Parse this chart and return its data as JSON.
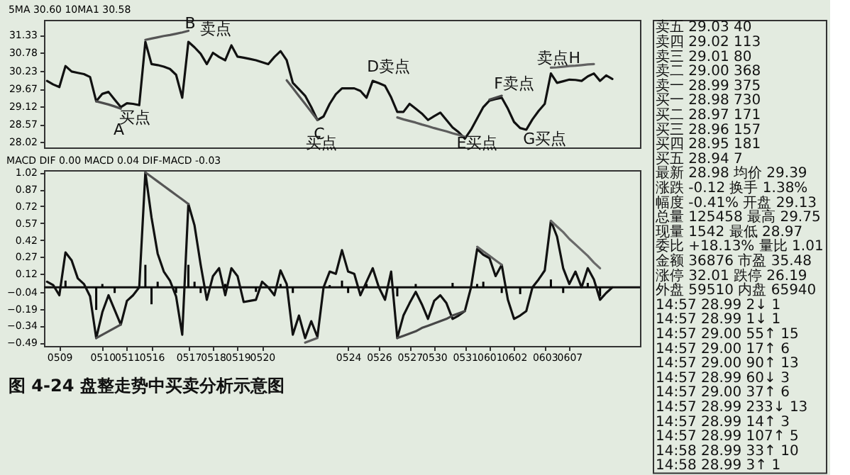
{
  "chart_data": [
    {
      "type": "line",
      "title": "5MA 30.60  10MA1 30.58",
      "categories": [
        null,
        null,
        "0509",
        null,
        null,
        null,
        null,
        null,
        null,
        "0510",
        null,
        null,
        null,
        "0511",
        null,
        null,
        null,
        "0516",
        null,
        null,
        null,
        null,
        null,
        "0517",
        null,
        null,
        null,
        "0518",
        null,
        null,
        null,
        "0519",
        null,
        null,
        null,
        "0520",
        null,
        null,
        null,
        null,
        null,
        null,
        null,
        null,
        null,
        null,
        null,
        null,
        null,
        "0524",
        null,
        null,
        null,
        null,
        "0526",
        null,
        null,
        null,
        null,
        "0527",
        null,
        null,
        null,
        "0530",
        null,
        null,
        null,
        null,
        "0531",
        null,
        null,
        null,
        "0601",
        null,
        null,
        null,
        "0602",
        null,
        null,
        null,
        null,
        "0603",
        null,
        null,
        null,
        "0607",
        null,
        null,
        null,
        null,
        null,
        null,
        null,
        null,
        null,
        null,
        null
      ],
      "ylim": [
        27.85,
        31.8
      ],
      "yticks": [
        31.33,
        30.78,
        30.23,
        29.67,
        29.12,
        28.57,
        28.02
      ],
      "tick_labels": "y",
      "grid": false,
      "series": [
        {
          "color": "#111111",
          "values": [
            29.91,
            29.8,
            29.72,
            30.37,
            30.2,
            30.16,
            30.12,
            30.03,
            29.28,
            29.51,
            29.57,
            29.33,
            29.1,
            29.22,
            29.2,
            29.16,
            31.12,
            30.43,
            30.4,
            30.35,
            30.28,
            30.1,
            29.39,
            31.12,
            30.95,
            30.75,
            30.43,
            30.78,
            30.65,
            30.55,
            31.01,
            30.66,
            30.63,
            30.59,
            30.55,
            30.49,
            30.43,
            30.65,
            30.83,
            30.55,
            29.85,
            29.65,
            29.45,
            29.1,
            28.7,
            28.81,
            29.2,
            29.5,
            29.68,
            29.68,
            29.68,
            29.6,
            29.39,
            29.91,
            29.84,
            29.76,
            29.4,
            28.95,
            28.95,
            29.2,
            29.05,
            28.9,
            28.7,
            28.82,
            28.93,
            28.7,
            28.47,
            28.32,
            28.12,
            28.4,
            28.75,
            29.1,
            29.3,
            29.35,
            29.39,
            29.05,
            28.64,
            28.45,
            28.4,
            28.72,
            28.98,
            29.2,
            30.14,
            29.85,
            29.9,
            29.95,
            29.94,
            29.91,
            30.05,
            30.14,
            29.91,
            30.08,
            29.97,
            null,
            null,
            null,
            null
          ]
        },
        {
          "color": "#4d4d4d",
          "values": [
            null,
            null,
            null,
            null,
            null,
            null,
            null,
            null,
            29.28,
            29.23,
            29.18,
            29.12,
            29.05,
            null,
            null,
            null,
            null,
            null,
            null,
            null,
            null,
            null,
            null,
            null,
            null,
            null,
            null,
            null,
            null,
            null,
            null,
            null,
            null,
            null,
            null,
            null,
            null,
            null,
            null,
            null,
            null,
            null,
            null,
            null,
            null,
            null,
            null,
            null,
            null,
            null,
            null,
            null,
            null,
            null,
            null,
            null,
            null,
            null,
            null,
            null,
            null,
            null,
            null,
            null,
            null,
            null,
            null,
            null,
            null,
            null,
            null,
            null,
            null,
            null,
            null,
            null,
            null,
            null,
            null,
            null,
            null,
            null,
            null,
            null,
            null,
            null,
            null,
            null,
            null,
            null,
            null,
            null,
            null,
            null,
            null,
            null,
            null
          ]
        },
        {
          "color": "#555555",
          "values": [
            null,
            null,
            null,
            null,
            null,
            null,
            null,
            null,
            null,
            null,
            null,
            null,
            null,
            null,
            null,
            null,
            31.18,
            31.22,
            31.26,
            31.3,
            31.33,
            31.37,
            31.41,
            31.46,
            null,
            null,
            null,
            null,
            null,
            null,
            null,
            null,
            null,
            null,
            null,
            null,
            null,
            null,
            null,
            null,
            null,
            null,
            null,
            null,
            null,
            null,
            null,
            null,
            null,
            null,
            null,
            null,
            null,
            null,
            null,
            null,
            null,
            null,
            null,
            null,
            null,
            null,
            null,
            null,
            null,
            null,
            null,
            null,
            null,
            null,
            null,
            null,
            null,
            null,
            null,
            null,
            null,
            null,
            null,
            null,
            null,
            null,
            null,
            null,
            null,
            null,
            null,
            null,
            null,
            null,
            null,
            null,
            null,
            null,
            null,
            null,
            null
          ]
        },
        {
          "color": "#555555",
          "values": [
            null,
            null,
            null,
            null,
            null,
            null,
            null,
            null,
            null,
            null,
            null,
            null,
            null,
            null,
            null,
            null,
            null,
            null,
            null,
            null,
            null,
            null,
            null,
            null,
            null,
            null,
            null,
            null,
            null,
            null,
            null,
            null,
            null,
            null,
            null,
            null,
            null,
            null,
            null,
            29.93,
            29.69,
            29.44,
            29.2,
            28.95,
            28.7,
            null,
            null,
            null,
            null,
            null,
            null,
            null,
            null,
            null,
            null,
            null,
            null,
            null,
            null,
            null,
            null,
            null,
            null,
            null,
            null,
            null,
            null,
            null,
            null,
            null,
            null,
            null,
            null,
            null,
            null,
            null,
            null,
            null,
            null,
            null,
            null,
            null,
            null,
            null,
            null,
            null,
            null,
            null,
            null,
            null,
            null,
            null,
            null,
            null,
            null,
            null,
            null
          ]
        },
        {
          "color": "#5c5c5c",
          "values": [
            null,
            null,
            null,
            null,
            null,
            null,
            null,
            null,
            null,
            null,
            null,
            null,
            null,
            null,
            null,
            null,
            null,
            null,
            null,
            null,
            null,
            null,
            null,
            null,
            null,
            null,
            null,
            null,
            null,
            null,
            null,
            null,
            null,
            null,
            null,
            null,
            null,
            null,
            null,
            null,
            null,
            null,
            null,
            null,
            null,
            null,
            null,
            null,
            null,
            null,
            null,
            null,
            null,
            null,
            null,
            null,
            null,
            28.78,
            28.72,
            28.67,
            28.62,
            28.56,
            28.51,
            28.45,
            28.4,
            28.35,
            28.29,
            28.24,
            28.18,
            null,
            null,
            null,
            null,
            null,
            null,
            null,
            null,
            null,
            null,
            null,
            null,
            null,
            null,
            null,
            null,
            null,
            null,
            null,
            null,
            null,
            null,
            null,
            null,
            null,
            null,
            null,
            null
          ]
        },
        {
          "color": "#474747",
          "values": [
            null,
            null,
            null,
            null,
            null,
            null,
            null,
            null,
            null,
            null,
            null,
            null,
            null,
            null,
            null,
            null,
            null,
            null,
            null,
            null,
            null,
            null,
            null,
            null,
            null,
            null,
            null,
            null,
            null,
            null,
            null,
            null,
            null,
            null,
            null,
            null,
            null,
            null,
            null,
            null,
            null,
            null,
            null,
            null,
            null,
            null,
            null,
            null,
            null,
            null,
            null,
            null,
            null,
            null,
            null,
            null,
            null,
            null,
            null,
            null,
            null,
            null,
            null,
            null,
            null,
            null,
            null,
            null,
            null,
            null,
            null,
            null,
            29.33,
            29.39,
            29.45,
            null,
            null,
            null,
            null,
            null,
            null,
            null,
            null,
            null,
            null,
            null,
            null,
            null,
            null,
            null,
            null,
            null,
            null,
            null,
            null,
            null,
            null
          ]
        },
        {
          "color": "#626262",
          "values": [
            null,
            null,
            null,
            null,
            null,
            null,
            null,
            null,
            null,
            null,
            null,
            null,
            null,
            null,
            null,
            null,
            null,
            null,
            null,
            null,
            null,
            null,
            null,
            null,
            null,
            null,
            null,
            null,
            null,
            null,
            null,
            null,
            null,
            null,
            null,
            null,
            null,
            null,
            null,
            null,
            null,
            null,
            null,
            null,
            null,
            null,
            null,
            null,
            null,
            null,
            null,
            null,
            null,
            null,
            null,
            null,
            null,
            null,
            null,
            null,
            null,
            null,
            null,
            null,
            null,
            null,
            null,
            null,
            null,
            null,
            null,
            null,
            null,
            null,
            null,
            null,
            null,
            null,
            null,
            null,
            null,
            null,
            30.32,
            30.33,
            30.35,
            30.37,
            30.38,
            30.4,
            30.42,
            30.43,
            null,
            null,
            null,
            null,
            null,
            null,
            null
          ]
        }
      ],
      "annotations": [
        "B",
        "卖点",
        "买点",
        "A",
        "C",
        "买点",
        "D卖点",
        "F卖点",
        "E买点",
        "G买点",
        "卖点H"
      ]
    },
    {
      "type": "line",
      "title": "MACD  DIF 0.00  MACD 0.04  DIF-MACD -0.03",
      "categories": [
        null,
        null,
        "0509",
        null,
        null,
        null,
        null,
        null,
        null,
        "0510",
        null,
        null,
        null,
        "0511",
        null,
        null,
        null,
        "0516",
        null,
        null,
        null,
        null,
        null,
        "0517",
        null,
        null,
        null,
        "0518",
        null,
        null,
        null,
        "0519",
        null,
        null,
        null,
        "0520",
        null,
        null,
        null,
        null,
        null,
        null,
        null,
        null,
        null,
        null,
        null,
        null,
        null,
        "0524",
        null,
        null,
        null,
        null,
        "0526",
        null,
        null,
        null,
        null,
        "0527",
        null,
        null,
        null,
        "0530",
        null,
        null,
        null,
        null,
        "0531",
        null,
        null,
        null,
        "0601",
        null,
        null,
        null,
        "0602",
        null,
        null,
        null,
        null,
        "0603",
        null,
        null,
        null,
        "0607",
        null,
        null,
        null,
        null,
        null,
        null,
        null,
        null,
        null,
        null,
        null
      ],
      "ylim": [
        -0.52,
        1.04
      ],
      "yticks": [
        1.02,
        0.87,
        0.72,
        0.57,
        0.42,
        0.27,
        0.12,
        -0.04,
        -0.19,
        -0.34,
        -0.49
      ],
      "grid": false,
      "ref_lines": [
        {
          "axis": "y",
          "value": 0,
          "color": "#111111"
        }
      ],
      "series": [
        {
          "type": "bar",
          "color": "#000000",
          "values": [
            null,
            null,
            null,
            0.06,
            null,
            null,
            null,
            null,
            -0.2,
            0.03,
            null,
            -0.05,
            null,
            null,
            null,
            null,
            0.2,
            -0.15,
            0.05,
            null,
            null,
            -0.05,
            null,
            0.2,
            0.05,
            -0.05,
            null,
            null,
            null,
            0.03,
            null,
            null,
            null,
            null,
            -0.04,
            null,
            null,
            null,
            0.03,
            null,
            -0.05,
            null,
            null,
            null,
            null,
            null,
            0.02,
            null,
            0.06,
            -0.05,
            null,
            null,
            0.03,
            null,
            null,
            null,
            null,
            -0.08,
            null,
            null,
            0.03,
            null,
            null,
            null,
            null,
            null,
            0.04,
            null,
            null,
            null,
            0.03,
            0.05,
            null,
            null,
            -0.05,
            null,
            null,
            -0.06,
            null,
            null,
            null,
            null,
            0.07,
            null,
            -0.05,
            null,
            null,
            null,
            0.04,
            null,
            -0.08,
            null,
            null,
            null,
            null,
            null,
            null
          ]
        },
        {
          "color": "#111111",
          "values": [
            0.05,
            0.02,
            -0.07,
            0.31,
            0.24,
            0.08,
            0.03,
            -0.08,
            -0.45,
            -0.22,
            -0.07,
            -0.2,
            -0.33,
            -0.12,
            -0.07,
            0.0,
            1.02,
            0.62,
            0.3,
            0.14,
            0.06,
            -0.08,
            -0.42,
            0.74,
            0.55,
            0.2,
            -0.11,
            0.1,
            0.17,
            -0.07,
            0.17,
            0.1,
            -0.13,
            -0.12,
            -0.11,
            0.05,
            0.0,
            -0.07,
            0.15,
            0.03,
            -0.42,
            -0.25,
            -0.45,
            -0.3,
            -0.44,
            0.0,
            0.14,
            0.12,
            0.33,
            0.14,
            0.12,
            -0.07,
            0.05,
            0.17,
            0.0,
            -0.11,
            0.14,
            -0.45,
            -0.25,
            -0.14,
            -0.04,
            -0.15,
            -0.28,
            -0.12,
            -0.07,
            -0.14,
            -0.28,
            -0.25,
            -0.21,
            0.0,
            0.34,
            0.29,
            0.26,
            0.1,
            0.2,
            -0.11,
            -0.28,
            -0.25,
            -0.21,
            0.0,
            0.07,
            0.15,
            0.59,
            0.45,
            0.17,
            0.03,
            0.14,
            0.0,
            0.17,
            0.07,
            -0.11,
            -0.05,
            0.0,
            null,
            null,
            null,
            null
          ]
        },
        {
          "color": "#555555",
          "values": [
            null,
            null,
            null,
            null,
            null,
            null,
            null,
            null,
            null,
            null,
            null,
            null,
            null,
            null,
            null,
            null,
            1.02,
            0.98,
            0.94,
            0.9,
            0.86,
            0.82,
            0.78,
            0.74,
            null,
            null,
            null,
            null,
            null,
            null,
            null,
            null,
            null,
            null,
            null,
            null,
            null,
            null,
            null,
            null,
            null,
            null,
            null,
            null,
            null,
            null,
            null,
            null,
            null,
            null,
            null,
            null,
            null,
            null,
            null,
            null,
            null,
            null,
            null,
            null,
            null,
            null,
            null,
            null,
            null,
            null,
            null,
            null,
            null,
            null,
            null,
            null,
            null,
            null,
            null,
            null,
            null,
            null,
            null,
            null,
            null,
            null,
            null,
            null,
            null,
            null,
            null,
            null,
            null,
            null,
            null,
            null,
            null,
            null,
            null,
            null,
            null
          ]
        },
        {
          "color": "#4d4d4d",
          "values": [
            null,
            null,
            null,
            null,
            null,
            null,
            null,
            null,
            -0.45,
            -0.42,
            -0.39,
            -0.36,
            -0.33,
            null,
            null,
            null,
            null,
            null,
            null,
            null,
            null,
            null,
            null,
            null,
            null,
            null,
            null,
            null,
            null,
            null,
            null,
            null,
            null,
            null,
            null,
            null,
            null,
            null,
            null,
            null,
            null,
            null,
            null,
            null,
            null,
            null,
            null,
            null,
            null,
            null,
            null,
            null,
            null,
            null,
            null,
            null,
            null,
            null,
            null,
            null,
            null,
            null,
            null,
            null,
            null,
            null,
            null,
            null,
            null,
            null,
            null,
            null,
            null,
            null,
            null,
            null,
            null,
            null,
            null,
            null,
            null,
            null,
            null,
            null,
            null,
            null,
            null,
            null,
            null,
            null,
            null,
            null,
            null,
            null,
            null,
            null,
            null
          ]
        },
        {
          "color": "#5c5c5c",
          "values": [
            null,
            null,
            null,
            null,
            null,
            null,
            null,
            null,
            null,
            null,
            null,
            null,
            null,
            null,
            null,
            null,
            null,
            null,
            null,
            null,
            null,
            null,
            null,
            null,
            null,
            null,
            null,
            null,
            null,
            null,
            null,
            null,
            null,
            null,
            null,
            null,
            null,
            null,
            null,
            null,
            null,
            null,
            -0.49,
            -0.47,
            -0.45,
            null,
            null,
            null,
            null,
            null,
            null,
            null,
            null,
            null,
            null,
            null,
            null,
            null,
            null,
            null,
            null,
            null,
            null,
            null,
            null,
            null,
            null,
            null,
            null,
            null,
            null,
            null,
            null,
            null,
            null,
            null,
            null,
            null,
            null,
            null,
            null,
            null,
            null,
            null,
            null,
            null,
            null,
            null,
            null,
            null,
            null,
            null,
            null,
            null,
            null,
            null,
            null
          ]
        },
        {
          "color": "#474747",
          "values": [
            null,
            null,
            null,
            null,
            null,
            null,
            null,
            null,
            null,
            null,
            null,
            null,
            null,
            null,
            null,
            null,
            null,
            null,
            null,
            null,
            null,
            null,
            null,
            null,
            null,
            null,
            null,
            null,
            null,
            null,
            null,
            null,
            null,
            null,
            null,
            null,
            null,
            null,
            null,
            null,
            null,
            null,
            null,
            null,
            null,
            null,
            null,
            null,
            null,
            null,
            null,
            null,
            null,
            null,
            null,
            null,
            null,
            -0.45,
            -0.43,
            -0.41,
            -0.39,
            -0.36,
            -0.34,
            -0.32,
            -0.3,
            -0.28,
            -0.25,
            -0.23,
            -0.21,
            null,
            null,
            null,
            null,
            null,
            null,
            null,
            null,
            null,
            null,
            null,
            null,
            null,
            null,
            null,
            null,
            null,
            null,
            null,
            null,
            null,
            null,
            null,
            null,
            null,
            null,
            null,
            null
          ]
        },
        {
          "color": "#626262",
          "values": [
            null,
            null,
            null,
            null,
            null,
            null,
            null,
            null,
            null,
            null,
            null,
            null,
            null,
            null,
            null,
            null,
            null,
            null,
            null,
            null,
            null,
            null,
            null,
            null,
            null,
            null,
            null,
            null,
            null,
            null,
            null,
            null,
            null,
            null,
            null,
            null,
            null,
            null,
            null,
            null,
            null,
            null,
            null,
            null,
            null,
            null,
            null,
            null,
            null,
            null,
            null,
            null,
            null,
            null,
            null,
            null,
            null,
            null,
            null,
            null,
            null,
            null,
            null,
            null,
            null,
            null,
            null,
            null,
            null,
            null,
            0.36,
            0.32,
            0.28,
            0.24,
            0.2,
            null,
            null,
            null,
            null,
            null,
            null,
            null,
            null,
            null,
            null,
            null,
            null,
            null,
            null,
            null,
            null,
            null,
            null,
            null,
            null,
            null,
            null
          ]
        },
        {
          "color": "#696969",
          "values": [
            null,
            null,
            null,
            null,
            null,
            null,
            null,
            null,
            null,
            null,
            null,
            null,
            null,
            null,
            null,
            null,
            null,
            null,
            null,
            null,
            null,
            null,
            null,
            null,
            null,
            null,
            null,
            null,
            null,
            null,
            null,
            null,
            null,
            null,
            null,
            null,
            null,
            null,
            null,
            null,
            null,
            null,
            null,
            null,
            null,
            null,
            null,
            null,
            null,
            null,
            null,
            null,
            null,
            null,
            null,
            null,
            null,
            null,
            null,
            null,
            null,
            null,
            null,
            null,
            null,
            null,
            null,
            null,
            null,
            null,
            null,
            null,
            null,
            null,
            null,
            null,
            null,
            null,
            null,
            null,
            null,
            null,
            0.59,
            0.54,
            0.49,
            0.43,
            0.38,
            0.33,
            0.28,
            0.22,
            0.17,
            null,
            null,
            null,
            null,
            null,
            null
          ]
        }
      ],
      "annotations": [
        "图 4-24   盘整走势中买卖分析示意图"
      ]
    },
    {
      "type": "other",
      "annotations": [
        "卖五 29.03 40",
        "卖四 29.02 113",
        "卖三 29.01 80",
        "卖二 29.00 368",
        "卖一 28.99 375",
        "买一 28.98 730",
        "买二 28.97 171",
        "买三 28.96 157",
        "买四 28.95 181",
        "买五 28.94 7",
        "最新 28.98 均价 29.39",
        "涨跌 -0.12 换手 1.38%",
        "幅度 -0.41% 开盘 29.13",
        "总量 125458 最高 29.75",
        "现量 1542 最低 28.97",
        "委比 +18.13% 量比 1.01",
        "金额 36876 市盈 35.48",
        "涨停 32.01 跌停 26.19",
        "外盘 59510 内盘 65940",
        "14:57 28.99 2↓ 1",
        "14:57 28.99 1↓ 1",
        "14:57 29.00 55↑ 15",
        "14:57 29.00 17↑ 6",
        "14:57 29.00 90↑ 13",
        "14:57 28.99 60↓ 3",
        "14:57 29.00 37↑ 6",
        "14:57 28.99 233↓ 13",
        "14:57 28.99 14↑ 3",
        "14:57 28.99 107↑ 5",
        "14:58 28.99 33↑ 10",
        "14:58 28.99 3↑ 1"
      ]
    }
  ]
}
